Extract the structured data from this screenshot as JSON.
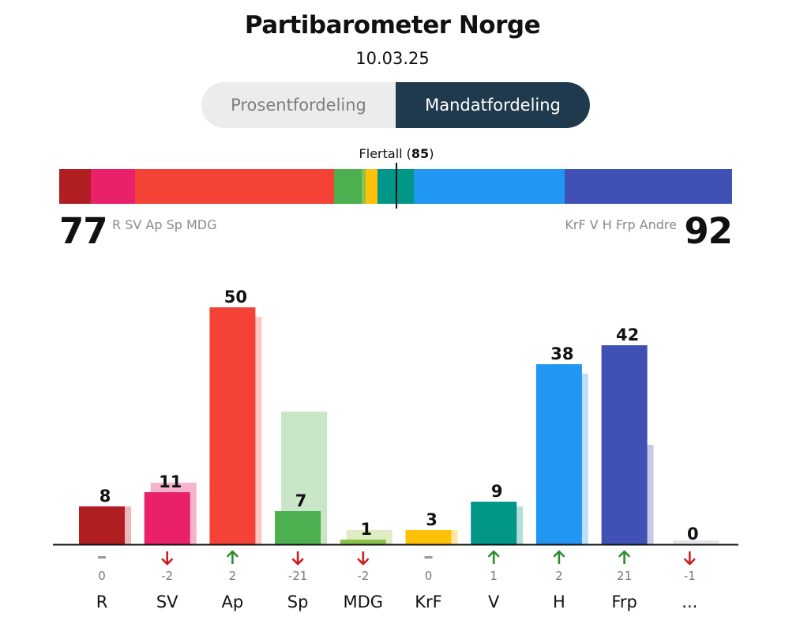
{
  "title": "Partibarometer Norge",
  "date": "10.03.25",
  "toggle": {
    "option1": "Prosentfordeling",
    "option2": "Mandatfordeling",
    "selected": "Mandatfordeling"
  },
  "majority": {
    "label": "Flertall",
    "value": "85"
  },
  "blocs": {
    "left": {
      "seats": "77",
      "parties": "R SV Ap Sp MDG"
    },
    "right": {
      "seats": "92",
      "parties": "KrF V H Frp Andre"
    }
  },
  "chart_data": {
    "type": "bar",
    "categories": [
      "R",
      "SV",
      "Ap",
      "Sp",
      "MDG",
      "KrF",
      "V",
      "H",
      "Frp",
      "..."
    ],
    "values": [
      8,
      11,
      50,
      7,
      1,
      3,
      9,
      38,
      42,
      0
    ],
    "previous": [
      8,
      13,
      48,
      28,
      3,
      3,
      8,
      36,
      21,
      1
    ],
    "changes": [
      "0",
      "-2",
      "2",
      "-21",
      "-2",
      "0",
      "1",
      "2",
      "21",
      "-1"
    ],
    "directions": [
      "none",
      "down",
      "up",
      "down",
      "down",
      "none",
      "up",
      "up",
      "up",
      "down"
    ],
    "colors": [
      "#b01e22",
      "#e8216a",
      "#f44336",
      "#4caf50",
      "#8bc34a",
      "#ffc107",
      "#009688",
      "#2196f3",
      "#3f51b5",
      "#c5cad0"
    ],
    "prev_colors": [
      "#f0b7b9",
      "#f6b3cc",
      "#ffc6c3",
      "#c9e6c9",
      "#e0ecc4",
      "#fde9a6",
      "#b2dfdb",
      "#bbdefb",
      "#c5cae9",
      "#e3e5e8"
    ],
    "ylim": [
      0,
      60
    ]
  },
  "seat_bar": {
    "segments": [
      {
        "party": "R",
        "color": "#b01e22",
        "seats": 8
      },
      {
        "party": "SV",
        "color": "#e8216a",
        "seats": 11
      },
      {
        "party": "Ap",
        "color": "#f44336",
        "seats": 50
      },
      {
        "party": "Sp",
        "color": "#4caf50",
        "seats": 7
      },
      {
        "party": "MDG",
        "color": "#8bc34a",
        "seats": 1
      },
      {
        "party": "KrF",
        "color": "#ffc107",
        "seats": 3
      },
      {
        "party": "V",
        "color": "#009688",
        "seats": 9
      },
      {
        "party": "H",
        "color": "#2196f3",
        "seats": 38
      },
      {
        "party": "Frp",
        "color": "#3f51b5",
        "seats": 42
      }
    ],
    "total": 169
  },
  "colors": {
    "up": "#2e8b2e",
    "down": "#d01c1c",
    "neutral": "#9a9a9a",
    "toggle_active": "#1f3a4d"
  }
}
